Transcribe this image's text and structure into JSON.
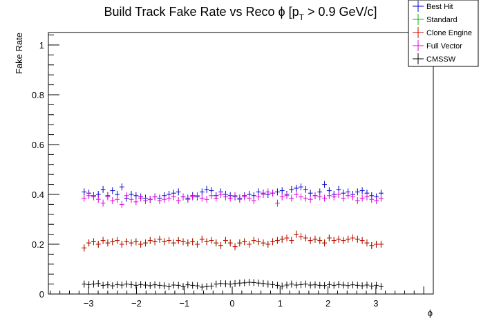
{
  "chart_data": {
    "type": "scatter",
    "title": "Build Track Fake Rate vs Reco ϕ [p_T > 0.9 GeV/c]",
    "title_parts": {
      "main": "Build Track Fake Rate vs Reco ",
      "phi": "ϕ",
      "open": " [p",
      "sub": "T",
      "close": " > 0.9 GeV/c]"
    },
    "xlabel": "ϕ",
    "ylabel": "Fake Rate",
    "xlim": [
      -3.84,
      4.2
    ],
    "ylim": [
      0,
      1.05
    ],
    "x_ticks": [
      -3,
      -2,
      -1,
      0,
      1,
      2,
      3
    ],
    "x_tick_labels": [
      "−3",
      "−2",
      "−1",
      "0",
      "1",
      "2",
      "3"
    ],
    "y_ticks": [
      0,
      0.2,
      0.4,
      0.6,
      0.8,
      1
    ],
    "y_tick_labels": [
      "0",
      "0.2",
      "0.4",
      "0.6",
      "0.8",
      "1"
    ],
    "legend_position": "top-right",
    "bin_width": 0.0985,
    "x": [
      -3.092,
      -2.994,
      -2.895,
      -2.797,
      -2.698,
      -2.6,
      -2.501,
      -2.403,
      -2.305,
      -2.206,
      -2.108,
      -2.009,
      -1.911,
      -1.812,
      -1.714,
      -1.616,
      -1.517,
      -1.419,
      -1.32,
      -1.222,
      -1.123,
      -1.025,
      -0.927,
      -0.828,
      -0.73,
      -0.631,
      -0.533,
      -0.434,
      -0.336,
      -0.238,
      -0.139,
      -0.041,
      0.058,
      0.156,
      0.255,
      0.353,
      0.451,
      0.55,
      0.648,
      0.747,
      0.845,
      0.944,
      1.042,
      1.14,
      1.239,
      1.337,
      1.436,
      1.534,
      1.633,
      1.731,
      1.829,
      1.928,
      2.026,
      2.125,
      2.223,
      2.322,
      2.42,
      2.518,
      2.617,
      2.715,
      2.814,
      2.912,
      3.011,
      3.109
    ],
    "series": [
      {
        "name": "Best Hit",
        "color": "#0000cc",
        "values": [
          0.41,
          0.405,
          0.395,
          0.4,
          0.42,
          0.395,
          0.415,
          0.4,
          0.43,
          0.385,
          0.4,
          0.395,
          0.39,
          0.385,
          0.38,
          0.39,
          0.385,
          0.395,
          0.4,
          0.405,
          0.41,
          0.39,
          0.385,
          0.395,
          0.39,
          0.41,
          0.42,
          0.415,
          0.395,
          0.41,
          0.4,
          0.395,
          0.39,
          0.385,
          0.395,
          0.4,
          0.395,
          0.41,
          0.405,
          0.4,
          0.405,
          0.41,
          0.415,
          0.4,
          0.42,
          0.425,
          0.43,
          0.42,
          0.405,
          0.395,
          0.41,
          0.44,
          0.415,
          0.4,
          0.42,
          0.405,
          0.41,
          0.4,
          0.41,
          0.415,
          0.405,
          0.395,
          0.39,
          0.405
        ]
      },
      {
        "name": "Standard",
        "color": "#00bb00",
        "values": [
          0.185,
          0.205,
          0.21,
          0.2,
          0.215,
          0.205,
          0.21,
          0.215,
          0.2,
          0.21,
          0.205,
          0.21,
          0.2,
          0.205,
          0.215,
          0.21,
          0.22,
          0.21,
          0.215,
          0.205,
          0.215,
          0.21,
          0.205,
          0.21,
          0.2,
          0.22,
          0.21,
          0.215,
          0.205,
          0.195,
          0.215,
          0.205,
          0.19,
          0.205,
          0.21,
          0.2,
          0.215,
          0.21,
          0.205,
          0.2,
          0.21,
          0.215,
          0.22,
          0.225,
          0.215,
          0.24,
          0.23,
          0.225,
          0.215,
          0.22,
          0.215,
          0.205,
          0.225,
          0.215,
          0.22,
          0.215,
          0.22,
          0.225,
          0.22,
          0.215,
          0.205,
          0.195,
          0.2,
          0.2
        ]
      },
      {
        "name": "Clone Engine",
        "color": "#cc0000",
        "values": [
          0.185,
          0.205,
          0.21,
          0.2,
          0.215,
          0.205,
          0.21,
          0.215,
          0.2,
          0.21,
          0.205,
          0.21,
          0.2,
          0.205,
          0.215,
          0.21,
          0.22,
          0.21,
          0.215,
          0.205,
          0.215,
          0.21,
          0.205,
          0.21,
          0.2,
          0.22,
          0.21,
          0.215,
          0.205,
          0.195,
          0.215,
          0.205,
          0.19,
          0.205,
          0.21,
          0.2,
          0.215,
          0.21,
          0.205,
          0.2,
          0.21,
          0.215,
          0.22,
          0.225,
          0.215,
          0.24,
          0.23,
          0.225,
          0.215,
          0.22,
          0.215,
          0.205,
          0.225,
          0.215,
          0.22,
          0.215,
          0.22,
          0.225,
          0.22,
          0.215,
          0.205,
          0.195,
          0.2,
          0.2
        ]
      },
      {
        "name": "Full Vector",
        "color": "#dd00dd",
        "values": [
          0.385,
          0.395,
          0.39,
          0.38,
          0.365,
          0.39,
          0.375,
          0.38,
          0.36,
          0.395,
          0.38,
          0.37,
          0.385,
          0.375,
          0.38,
          0.39,
          0.375,
          0.38,
          0.385,
          0.39,
          0.375,
          0.39,
          0.38,
          0.39,
          0.395,
          0.385,
          0.38,
          0.395,
          0.385,
          0.4,
          0.39,
          0.385,
          0.395,
          0.38,
          0.39,
          0.385,
          0.375,
          0.39,
          0.4,
          0.41,
          0.405,
          0.365,
          0.39,
          0.395,
          0.385,
          0.4,
          0.39,
          0.385,
          0.38,
          0.395,
          0.39,
          0.385,
          0.395,
          0.39,
          0.4,
          0.385,
          0.395,
          0.39,
          0.375,
          0.385,
          0.39,
          0.38,
          0.375,
          0.385
        ]
      },
      {
        "name": "CMSSW",
        "color": "#000000",
        "values": [
          0.04,
          0.038,
          0.04,
          0.042,
          0.035,
          0.037,
          0.033,
          0.038,
          0.036,
          0.04,
          0.038,
          0.035,
          0.038,
          0.036,
          0.034,
          0.037,
          0.035,
          0.033,
          0.03,
          0.036,
          0.035,
          0.03,
          0.037,
          0.035,
          0.033,
          0.028,
          0.03,
          0.032,
          0.04,
          0.042,
          0.041,
          0.04,
          0.042,
          0.044,
          0.045,
          0.047,
          0.046,
          0.044,
          0.042,
          0.04,
          0.038,
          0.035,
          0.032,
          0.036,
          0.04,
          0.036,
          0.038,
          0.04,
          0.036,
          0.037,
          0.035,
          0.034,
          0.038,
          0.035,
          0.038,
          0.036,
          0.034,
          0.037,
          0.035,
          0.033,
          0.036,
          0.032,
          0.035,
          0.03
        ]
      }
    ]
  }
}
